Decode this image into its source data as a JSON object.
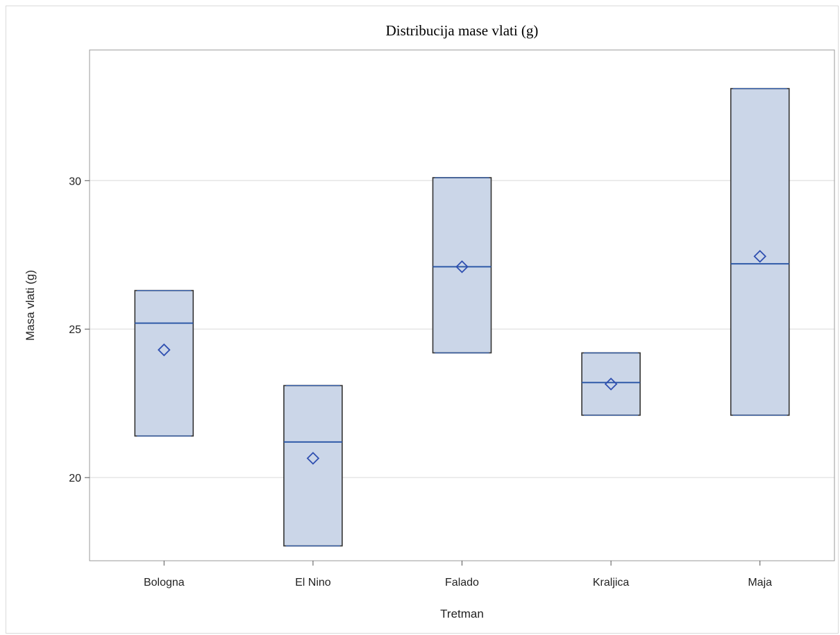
{
  "chart_data": {
    "type": "box",
    "title": "Distribucija mase vlati (g)",
    "xlabel": "Tretman",
    "ylabel": "Masa vlati (g)",
    "categories": [
      "Bologna",
      "El Nino",
      "Falado",
      "Kraljica",
      "Maja"
    ],
    "boxes": [
      {
        "category": "Bologna",
        "min": 21.4,
        "max": 26.3,
        "median": 25.2,
        "mean": 24.3
      },
      {
        "category": "El Nino",
        "min": 17.7,
        "max": 23.1,
        "median": 21.2,
        "mean": 20.65
      },
      {
        "category": "Falado",
        "min": 24.2,
        "max": 30.1,
        "median": 27.1,
        "mean": 27.1
      },
      {
        "category": "Kraljica",
        "min": 22.1,
        "max": 24.2,
        "median": 23.2,
        "mean": 23.15
      },
      {
        "category": "Maja",
        "min": 22.1,
        "max": 33.1,
        "median": 27.2,
        "mean": 27.45
      }
    ],
    "yticks": [
      20,
      25,
      30
    ],
    "ylim": [
      17.2,
      34.4
    ],
    "grid": true,
    "colors": {
      "box_fill": "#cbd6e8",
      "box_edge": "#333333",
      "median": "#2f5aa8",
      "mean_marker": "#2f4fb0",
      "grid": "#e6e6e6",
      "frame": "#999999"
    }
  }
}
